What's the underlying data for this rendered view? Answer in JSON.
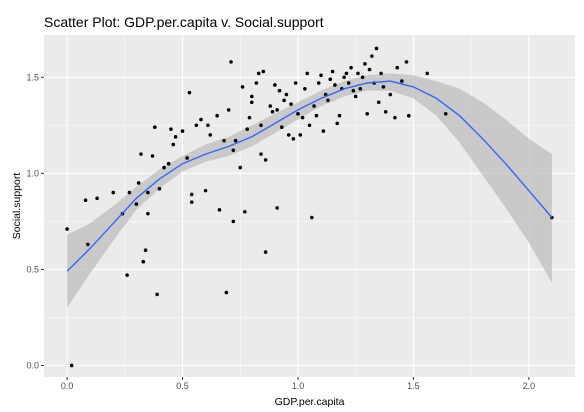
{
  "chart_data": {
    "type": "scatter",
    "title": "Scatter Plot: GDP.per.capita v. Social.support",
    "xlabel": "GDP.per.capita",
    "ylabel": "Social.support",
    "xlim": [
      -0.1,
      2.2
    ],
    "ylim": [
      -0.06,
      1.72
    ],
    "x_ticks": [
      0.0,
      0.5,
      1.0,
      1.5,
      2.0
    ],
    "x_tick_labels": [
      "0.0",
      "0.5",
      "1.0",
      "1.5",
      "2.0"
    ],
    "y_ticks": [
      0.0,
      0.5,
      1.0,
      1.5
    ],
    "y_tick_labels": [
      "0.0",
      "0.5",
      "1.0",
      "1.5"
    ],
    "grid": true,
    "legend": "none",
    "colors": {
      "panel": "#ebebeb",
      "grid": "#ffffff",
      "points": "#000000",
      "smooth_line": "#3366ff",
      "confidence_band": "#bebebe"
    },
    "points": [
      [
        0.0,
        0.71
      ],
      [
        0.02,
        0.0
      ],
      [
        0.08,
        0.86
      ],
      [
        0.09,
        0.63
      ],
      [
        0.13,
        0.87
      ],
      [
        0.2,
        0.9
      ],
      [
        0.24,
        0.79
      ],
      [
        0.26,
        0.47
      ],
      [
        0.27,
        0.9
      ],
      [
        0.3,
        0.84
      ],
      [
        0.31,
        0.95
      ],
      [
        0.32,
        1.1
      ],
      [
        0.33,
        0.54
      ],
      [
        0.34,
        0.6
      ],
      [
        0.35,
        0.79
      ],
      [
        0.35,
        0.9
      ],
      [
        0.37,
        1.09
      ],
      [
        0.38,
        1.24
      ],
      [
        0.39,
        0.37
      ],
      [
        0.4,
        0.92
      ],
      [
        0.42,
        1.03
      ],
      [
        0.44,
        1.05
      ],
      [
        0.45,
        1.23
      ],
      [
        0.46,
        1.15
      ],
      [
        0.47,
        1.19
      ],
      [
        0.5,
        1.22
      ],
      [
        0.52,
        1.08
      ],
      [
        0.53,
        1.42
      ],
      [
        0.54,
        0.89
      ],
      [
        0.54,
        0.85
      ],
      [
        0.56,
        1.25
      ],
      [
        0.58,
        1.28
      ],
      [
        0.6,
        0.91
      ],
      [
        0.61,
        1.25
      ],
      [
        0.62,
        1.2
      ],
      [
        0.65,
        1.3
      ],
      [
        0.66,
        0.81
      ],
      [
        0.68,
        1.17
      ],
      [
        0.69,
        0.38
      ],
      [
        0.7,
        1.33
      ],
      [
        0.71,
        1.58
      ],
      [
        0.72,
        1.12
      ],
      [
        0.72,
        0.75
      ],
      [
        0.73,
        1.17
      ],
      [
        0.75,
        1.03
      ],
      [
        0.76,
        1.45
      ],
      [
        0.77,
        0.8
      ],
      [
        0.78,
        1.23
      ],
      [
        0.79,
        1.29
      ],
      [
        0.8,
        1.37
      ],
      [
        0.8,
        1.4
      ],
      [
        0.82,
        1.47
      ],
      [
        0.83,
        1.52
      ],
      [
        0.84,
        1.1
      ],
      [
        0.84,
        1.25
      ],
      [
        0.85,
        1.53
      ],
      [
        0.86,
        0.59
      ],
      [
        0.86,
        1.07
      ],
      [
        0.88,
        1.35
      ],
      [
        0.89,
        1.32
      ],
      [
        0.9,
        1.46
      ],
      [
        0.91,
        0.82
      ],
      [
        0.91,
        1.33
      ],
      [
        0.92,
        1.43
      ],
      [
        0.93,
        1.24
      ],
      [
        0.94,
        1.38
      ],
      [
        0.95,
        1.41
      ],
      [
        0.96,
        1.2
      ],
      [
        0.97,
        1.36
      ],
      [
        0.98,
        1.18
      ],
      [
        0.99,
        1.47
      ],
      [
        1.0,
        1.31
      ],
      [
        1.01,
        1.2
      ],
      [
        1.02,
        1.29
      ],
      [
        1.03,
        1.44
      ],
      [
        1.04,
        1.52
      ],
      [
        1.05,
        1.25
      ],
      [
        1.06,
        0.77
      ],
      [
        1.07,
        1.35
      ],
      [
        1.08,
        1.3
      ],
      [
        1.09,
        1.47
      ],
      [
        1.1,
        1.51
      ],
      [
        1.11,
        1.22
      ],
      [
        1.12,
        1.41
      ],
      [
        1.13,
        1.38
      ],
      [
        1.14,
        1.49
      ],
      [
        1.15,
        1.53
      ],
      [
        1.16,
        1.46
      ],
      [
        1.17,
        1.26
      ],
      [
        1.18,
        1.3
      ],
      [
        1.19,
        1.44
      ],
      [
        1.2,
        1.5
      ],
      [
        1.21,
        1.52
      ],
      [
        1.22,
        1.47
      ],
      [
        1.23,
        1.55
      ],
      [
        1.24,
        1.43
      ],
      [
        1.25,
        1.4
      ],
      [
        1.26,
        1.52
      ],
      [
        1.27,
        1.44
      ],
      [
        1.28,
        1.5
      ],
      [
        1.29,
        1.57
      ],
      [
        1.3,
        1.31
      ],
      [
        1.31,
        1.54
      ],
      [
        1.32,
        1.61
      ],
      [
        1.33,
        1.47
      ],
      [
        1.34,
        1.65
      ],
      [
        1.35,
        1.37
      ],
      [
        1.36,
        1.52
      ],
      [
        1.37,
        1.45
      ],
      [
        1.38,
        1.32
      ],
      [
        1.4,
        1.41
      ],
      [
        1.42,
        1.29
      ],
      [
        1.43,
        1.55
      ],
      [
        1.45,
        1.48
      ],
      [
        1.47,
        1.58
      ],
      [
        1.48,
        1.3
      ],
      [
        1.56,
        1.52
      ],
      [
        1.64,
        1.31
      ],
      [
        2.1,
        0.77
      ]
    ],
    "smooth_line": [
      [
        0.0,
        0.49
      ],
      [
        0.1,
        0.61
      ],
      [
        0.2,
        0.74
      ],
      [
        0.3,
        0.87
      ],
      [
        0.4,
        0.97
      ],
      [
        0.5,
        1.05
      ],
      [
        0.6,
        1.1
      ],
      [
        0.7,
        1.14
      ],
      [
        0.8,
        1.19
      ],
      [
        0.9,
        1.26
      ],
      [
        1.0,
        1.33
      ],
      [
        1.1,
        1.39
      ],
      [
        1.2,
        1.44
      ],
      [
        1.3,
        1.47
      ],
      [
        1.4,
        1.48
      ],
      [
        1.5,
        1.45
      ],
      [
        1.6,
        1.39
      ],
      [
        1.7,
        1.3
      ],
      [
        1.8,
        1.18
      ],
      [
        1.9,
        1.05
      ],
      [
        2.0,
        0.91
      ],
      [
        2.1,
        0.77
      ]
    ],
    "confidence_upper": [
      [
        0.0,
        0.68
      ],
      [
        0.1,
        0.74
      ],
      [
        0.2,
        0.83
      ],
      [
        0.3,
        0.93
      ],
      [
        0.4,
        1.02
      ],
      [
        0.5,
        1.09
      ],
      [
        0.6,
        1.15
      ],
      [
        0.7,
        1.19
      ],
      [
        0.8,
        1.25
      ],
      [
        0.9,
        1.31
      ],
      [
        1.0,
        1.37
      ],
      [
        1.1,
        1.43
      ],
      [
        1.2,
        1.48
      ],
      [
        1.3,
        1.51
      ],
      [
        1.4,
        1.52
      ],
      [
        1.5,
        1.51
      ],
      [
        1.6,
        1.48
      ],
      [
        1.7,
        1.44
      ],
      [
        1.8,
        1.37
      ],
      [
        1.9,
        1.28
      ],
      [
        2.0,
        1.18
      ],
      [
        2.1,
        1.1
      ]
    ],
    "confidence_lower": [
      [
        0.0,
        0.3
      ],
      [
        0.1,
        0.48
      ],
      [
        0.2,
        0.65
      ],
      [
        0.3,
        0.81
      ],
      [
        0.4,
        0.92
      ],
      [
        0.5,
        1.01
      ],
      [
        0.6,
        1.06
      ],
      [
        0.7,
        1.09
      ],
      [
        0.8,
        1.14
      ],
      [
        0.9,
        1.21
      ],
      [
        1.0,
        1.28
      ],
      [
        1.1,
        1.35
      ],
      [
        1.2,
        1.4
      ],
      [
        1.3,
        1.43
      ],
      [
        1.4,
        1.43
      ],
      [
        1.5,
        1.39
      ],
      [
        1.6,
        1.3
      ],
      [
        1.7,
        1.16
      ],
      [
        1.8,
        0.99
      ],
      [
        1.9,
        0.82
      ],
      [
        2.0,
        0.64
      ],
      [
        2.1,
        0.43
      ]
    ]
  }
}
